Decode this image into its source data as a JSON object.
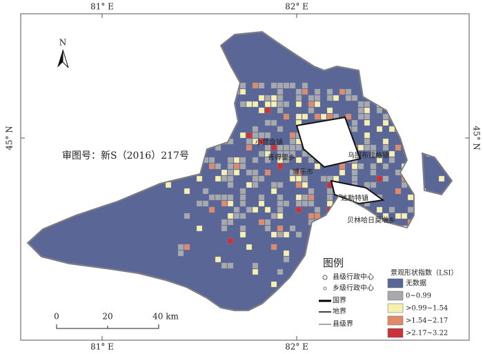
{
  "frame": {
    "top_labels": [
      "81° E",
      "82° E"
    ],
    "bottom_labels": [
      "81° E",
      "82° E"
    ],
    "left_label": "45° N",
    "right_label": "45° N"
  },
  "north_arrow": "N",
  "review_number": "审图号：新S（2016）217号",
  "places": [
    "小营盘镇",
    "青得里乡",
    "博乐市",
    "乌图布拉格镇",
    "达勒特镇",
    "贝林哈日莫墩乡"
  ],
  "legend": {
    "title": "图例",
    "items": [
      "县级行政中心",
      "乡级行政中心",
      "国界",
      "地界",
      "县级界"
    ]
  },
  "lsi_legend": {
    "title": "景观形状指数（LSI）",
    "classes": [
      {
        "label": "无数据",
        "color": "#5a6696"
      },
      {
        "label": "0~0.99",
        "color": "#a7a9ab"
      },
      {
        "label": ">0.99~1.54",
        "color": "#f7efb0"
      },
      {
        "label": ">1.54~2.17",
        "color": "#e08a6a"
      },
      {
        "label": ">2.17~3.22",
        "color": "#c8343a"
      }
    ]
  },
  "scale_bar": [
    "0",
    "20",
    "40 km"
  ]
}
